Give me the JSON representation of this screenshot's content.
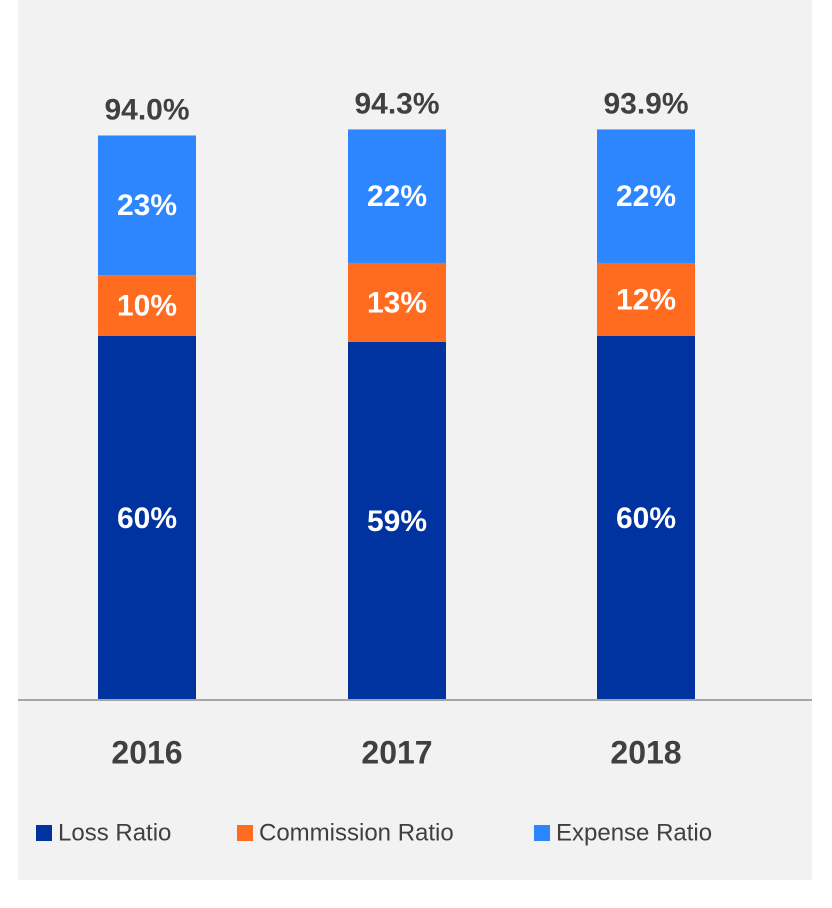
{
  "chart_data": {
    "type": "stacked_bar",
    "categories": [
      "2016",
      "2017",
      "2018"
    ],
    "series": [
      {
        "name": "Loss Ratio",
        "color": "#0033a0",
        "values": [
          60,
          59,
          60
        ],
        "value_labels": [
          "60%",
          "59%",
          "60%"
        ]
      },
      {
        "name": "Commission Ratio",
        "color": "#ff6b1f",
        "values": [
          10,
          13,
          12
        ],
        "value_labels": [
          "10%",
          "13%",
          "12%"
        ]
      },
      {
        "name": "Expense Ratio",
        "color": "#2e86ff",
        "values": [
          23,
          22,
          22
        ],
        "value_labels": [
          "23%",
          "22%",
          "22%"
        ]
      }
    ],
    "totals": [
      94.0,
      94.3,
      93.9
    ],
    "total_labels": [
      "94.0%",
      "94.3%",
      "93.9%"
    ],
    "ylim": [
      0,
      100
    ],
    "legend": "bottom"
  }
}
